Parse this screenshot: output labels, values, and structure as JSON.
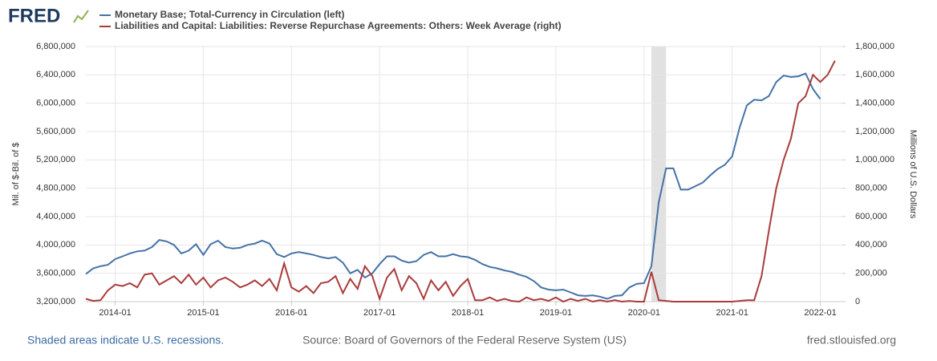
{
  "logo": "FRED",
  "chart_data": {
    "type": "line",
    "x": [
      "2013-09",
      "2013-10",
      "2013-11",
      "2013-12",
      "2014-01",
      "2014-02",
      "2014-03",
      "2014-04",
      "2014-05",
      "2014-06",
      "2014-07",
      "2014-08",
      "2014-09",
      "2014-10",
      "2014-11",
      "2014-12",
      "2015-01",
      "2015-02",
      "2015-03",
      "2015-04",
      "2015-05",
      "2015-06",
      "2015-07",
      "2015-08",
      "2015-09",
      "2015-10",
      "2015-11",
      "2015-12",
      "2016-01",
      "2016-02",
      "2016-03",
      "2016-04",
      "2016-05",
      "2016-06",
      "2016-07",
      "2016-08",
      "2016-09",
      "2016-10",
      "2016-11",
      "2016-12",
      "2017-01",
      "2017-02",
      "2017-03",
      "2017-04",
      "2017-05",
      "2017-06",
      "2017-07",
      "2017-08",
      "2017-09",
      "2017-10",
      "2017-11",
      "2017-12",
      "2018-01",
      "2018-02",
      "2018-03",
      "2018-04",
      "2018-05",
      "2018-06",
      "2018-07",
      "2018-08",
      "2018-09",
      "2018-10",
      "2018-11",
      "2018-12",
      "2019-01",
      "2019-02",
      "2019-03",
      "2019-04",
      "2019-05",
      "2019-06",
      "2019-07",
      "2019-08",
      "2019-09",
      "2019-10",
      "2019-11",
      "2019-12",
      "2020-01",
      "2020-02",
      "2020-03",
      "2020-04",
      "2020-05",
      "2020-06",
      "2020-07",
      "2020-08",
      "2020-09",
      "2020-10",
      "2020-11",
      "2020-12",
      "2021-01",
      "2021-02",
      "2021-03",
      "2021-04",
      "2021-05",
      "2021-06",
      "2021-07",
      "2021-08",
      "2021-09",
      "2021-10",
      "2021-11",
      "2021-12",
      "2022-01",
      "2022-02",
      "2022-03"
    ],
    "series": [
      {
        "name": "Monetary Base; Total-Currency in Circulation (left)",
        "color": "#4572a7",
        "axis": "y",
        "values": [
          3590000,
          3670000,
          3700000,
          3720000,
          3800000,
          3840000,
          3880000,
          3910000,
          3920000,
          3970000,
          4070000,
          4050000,
          4000000,
          3880000,
          3920000,
          4010000,
          3860000,
          4010000,
          4060000,
          3970000,
          3950000,
          3960000,
          4000000,
          4020000,
          4060000,
          4020000,
          3870000,
          3830000,
          3880000,
          3900000,
          3880000,
          3860000,
          3830000,
          3810000,
          3830000,
          3750000,
          3600000,
          3650000,
          3540000,
          3600000,
          3730000,
          3840000,
          3840000,
          3780000,
          3750000,
          3770000,
          3860000,
          3900000,
          3840000,
          3840000,
          3870000,
          3840000,
          3830000,
          3790000,
          3730000,
          3690000,
          3670000,
          3640000,
          3620000,
          3580000,
          3550000,
          3490000,
          3400000,
          3370000,
          3360000,
          3370000,
          3330000,
          3290000,
          3280000,
          3290000,
          3270000,
          3240000,
          3280000,
          3290000,
          3400000,
          3450000,
          3460000,
          3700000,
          4600000,
          5080000,
          5080000,
          4780000,
          4780000,
          4830000,
          4880000,
          4980000,
          5070000,
          5130000,
          5250000,
          5650000,
          5970000,
          6050000,
          6040000,
          6100000,
          6300000,
          6390000,
          6370000,
          6380000,
          6420000,
          6200000,
          6060000,
          null,
          null
        ]
      },
      {
        "name": "Liabilities and Capital: Liabilities: Reverse Repurchase Agreements: Others: Week Average (right)",
        "color": "#aa3b3b",
        "axis": "y2",
        "values": [
          20000,
          5000,
          10000,
          80000,
          120000,
          110000,
          130000,
          100000,
          190000,
          200000,
          120000,
          150000,
          180000,
          130000,
          190000,
          120000,
          170000,
          100000,
          150000,
          170000,
          140000,
          100000,
          120000,
          150000,
          110000,
          160000,
          80000,
          270000,
          100000,
          70000,
          110000,
          60000,
          130000,
          140000,
          180000,
          60000,
          160000,
          90000,
          250000,
          180000,
          20000,
          170000,
          230000,
          80000,
          180000,
          130000,
          20000,
          150000,
          80000,
          140000,
          40000,
          110000,
          160000,
          10000,
          10000,
          30000,
          5000,
          20000,
          5000,
          0,
          30000,
          10000,
          20000,
          5000,
          30000,
          0,
          20000,
          5000,
          20000,
          0,
          10000,
          0,
          10000,
          0,
          5000,
          0,
          0,
          210000,
          10000,
          5000,
          0,
          0,
          0,
          0,
          0,
          0,
          0,
          0,
          0,
          5000,
          10000,
          10000,
          180000,
          500000,
          800000,
          1000000,
          1150000,
          1400000,
          1450000,
          1600000,
          1550000,
          1600000,
          1700000
        ]
      }
    ],
    "xlim": [
      "2013-09",
      "2022-04"
    ],
    "xticks": [
      "2014-01",
      "2015-01",
      "2016-01",
      "2017-01",
      "2018-01",
      "2019-01",
      "2020-01",
      "2021-01",
      "2022-01"
    ],
    "ylabel": "Mil. of $-Bil. of $",
    "ylim": [
      3200000,
      6800000
    ],
    "yticks": [
      {
        "value": 3200000,
        "label": "3,200,000"
      },
      {
        "value": 3600000,
        "label": "3,600,000"
      },
      {
        "value": 4000000,
        "label": "4,000,000"
      },
      {
        "value": 4400000,
        "label": "4,400,000"
      },
      {
        "value": 4800000,
        "label": "4,800,000"
      },
      {
        "value": 5200000,
        "label": "5,200,000"
      },
      {
        "value": 5600000,
        "label": "5,600,000"
      },
      {
        "value": 6000000,
        "label": "6,000,000"
      },
      {
        "value": 6400000,
        "label": "6,400,000"
      },
      {
        "value": 6800000,
        "label": "6,800,000"
      }
    ],
    "y2label": "Millions of U.S. Dollars",
    "y2lim": [
      0,
      1800000
    ],
    "y2ticks": [
      0,
      {
        "value": 200000,
        "label": "200,000"
      },
      {
        "value": 400000,
        "label": "400,000"
      },
      {
        "value": 600000,
        "label": "600,000"
      },
      {
        "value": 800000,
        "label": "800,000"
      },
      {
        "value": 1000000,
        "label": "1,000,000"
      },
      {
        "value": 1200000,
        "label": "1,200,000"
      },
      {
        "value": 1400000,
        "label": "1,400,000"
      },
      {
        "value": 1600000,
        "label": "1,600,000"
      },
      {
        "value": 1800000,
        "label": "1,800,000"
      }
    ],
    "grid": true,
    "recessions": [
      {
        "start": "2020-02",
        "end": "2020-04",
        "color": "#e1e1e1"
      }
    ],
    "footnote": "Shaded areas indicate U.S. recessions.",
    "source": "Source: Board of Governors of the Federal Reserve System (US)",
    "site": "fred.stlouisfed.org"
  }
}
